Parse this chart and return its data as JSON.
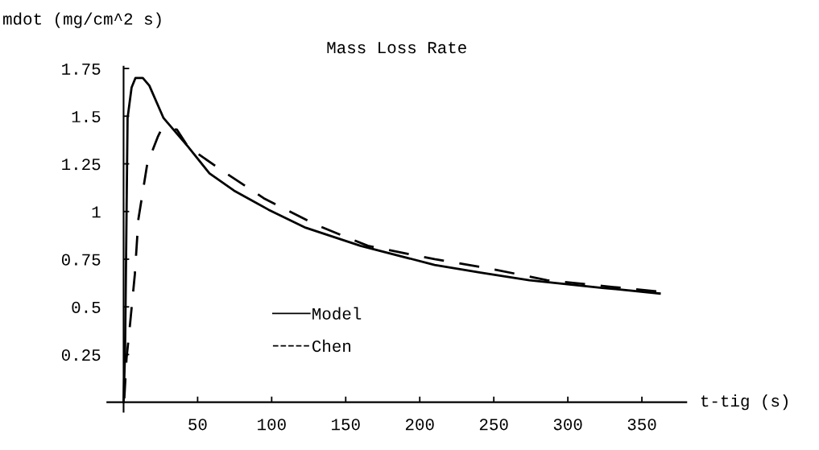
{
  "chart_data": {
    "type": "line",
    "title": "Mass Loss Rate",
    "xlabel": "t-tig (s)",
    "ylabel": "mdot (mg/cm^2 s)",
    "xlim": [
      -11,
      380
    ],
    "ylim": [
      -0.05,
      1.76
    ],
    "xticks": [
      50,
      100,
      150,
      200,
      250,
      300,
      350
    ],
    "yticks": [
      0.25,
      0.5,
      0.75,
      1,
      1.25,
      1.5,
      1.75
    ],
    "legend": "bottom left",
    "grid": false,
    "series": [
      {
        "name": "Model",
        "color": "#000000",
        "line_style": "solid",
        "x": [
          0,
          1,
          2.7,
          5.4,
          8,
          13,
          17.4,
          27,
          43.5,
          58,
          74.5,
          97.8,
          123,
          160,
          210,
          241,
          274,
          323,
          362
        ],
        "values": [
          0,
          0.26,
          1.49,
          1.65,
          1.7,
          1.7,
          1.66,
          1.49,
          1.34,
          1.2,
          1.11,
          1.01,
          0.915,
          0.82,
          0.72,
          0.68,
          0.64,
          0.6,
          0.57
        ]
      },
      {
        "name": "Chen",
        "color": "#000000",
        "line_style": "dashed",
        "x": [
          0.5,
          2,
          4,
          7.6,
          10,
          16,
          23,
          25.5,
          36,
          43.5,
          63.6,
          94.6,
          130,
          165,
          210,
          248,
          286,
          323,
          362
        ],
        "values": [
          0.02,
          0.23,
          0.38,
          0.67,
          0.96,
          1.25,
          1.39,
          1.43,
          1.43,
          1.34,
          1.23,
          1.07,
          0.93,
          0.82,
          0.75,
          0.7,
          0.64,
          0.61,
          0.58
        ]
      }
    ]
  }
}
